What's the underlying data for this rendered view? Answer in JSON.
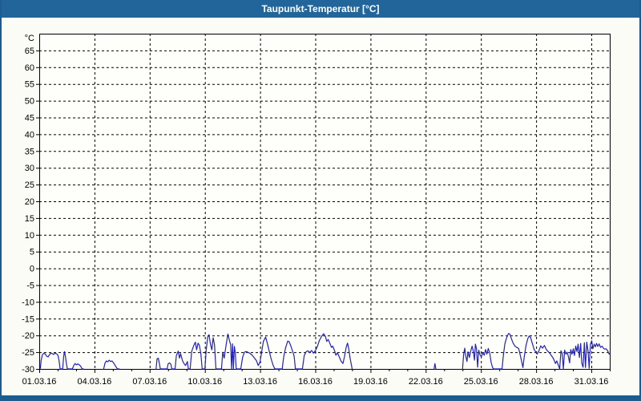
{
  "window": {
    "title": "Taupunkt-Temperatur [°C]",
    "colors": {
      "titlebar_bg": "#21659b",
      "frame": "#1c5c8e",
      "content_bg": "#fbfcf5",
      "plot_bg": "#fefefa",
      "grid": "#000000",
      "axis": "#000000",
      "label_text": "#000000",
      "title_text": "#ffffff",
      "line": "#2222bb"
    }
  },
  "chart_data": {
    "type": "line",
    "title": "Taupunkt-Temperatur [°C]",
    "y_unit": "°C",
    "legend": "none",
    "grid": "dashed",
    "x_axis": {
      "range_days": [
        0,
        31
      ],
      "start_date": "01.03.16",
      "end_date": "31.03.16",
      "tick_label_days": [
        0,
        3,
        6,
        9,
        12,
        15,
        18,
        21,
        24,
        27,
        30
      ],
      "tick_labels": [
        "01.03.16",
        "04.03.16",
        "07.03.16",
        "10.03.16",
        "13.03.16",
        "16.03.16",
        "19.03.16",
        "22.03.16",
        "25.03.16",
        "28.03.16",
        "31.03.16"
      ],
      "minor_tick_every_days": 1
    },
    "y_axis": {
      "range": [
        -30,
        70
      ],
      "ticks": [
        65,
        60,
        55,
        50,
        45,
        40,
        35,
        30,
        25,
        20,
        15,
        10,
        5,
        0,
        -5,
        -10,
        -15,
        -20,
        -25,
        -30
      ],
      "unit_label": "°C"
    },
    "series": [
      {
        "name": "Taupunkt-Temperatur",
        "color": "#2222bb",
        "unit": "°C",
        "segments": [
          [
            [
              0.06,
              -29.8
            ],
            [
              0.1,
              -27.5
            ],
            [
              0.17,
              -25.8
            ],
            [
              0.25,
              -25.3
            ],
            [
              0.33,
              -25.6
            ],
            [
              0.4,
              -26.2
            ],
            [
              0.48,
              -26.4
            ],
            [
              0.55,
              -25.8
            ],
            [
              0.63,
              -25.3
            ],
            [
              0.7,
              -25.4
            ],
            [
              0.78,
              -25.7
            ],
            [
              0.85,
              -25.3
            ],
            [
              0.95,
              -25.5
            ],
            [
              1.02,
              -26.0
            ],
            [
              1.08,
              -27.6
            ],
            [
              1.13,
              -30
            ],
            [
              1.27,
              -30
            ],
            [
              1.33,
              -26.2
            ],
            [
              1.37,
              -24.8
            ],
            [
              1.43,
              -26.5
            ],
            [
              1.48,
              -28.6
            ],
            [
              1.53,
              -30
            ],
            [
              1.8,
              -30
            ],
            [
              1.88,
              -28.9
            ],
            [
              1.95,
              -28.4
            ],
            [
              2.03,
              -28.8
            ],
            [
              2.1,
              -28.5
            ],
            [
              2.18,
              -28.8
            ],
            [
              2.25,
              -29.2
            ],
            [
              2.33,
              -30
            ],
            [
              2.4,
              -30
            ]
          ],
          [
            [
              3.5,
              -30
            ],
            [
              3.57,
              -28.3
            ],
            [
              3.65,
              -27.6
            ],
            [
              3.72,
              -27.9
            ],
            [
              3.8,
              -27.4
            ],
            [
              3.88,
              -27.8
            ],
            [
              3.95,
              -27.6
            ],
            [
              4.05,
              -28.3
            ],
            [
              4.15,
              -29.2
            ],
            [
              4.25,
              -30
            ],
            [
              4.35,
              -30
            ]
          ],
          [
            [
              6.35,
              -30
            ],
            [
              6.4,
              -27.0
            ],
            [
              6.47,
              -26.8
            ],
            [
              6.53,
              -28.5
            ],
            [
              6.58,
              -30
            ],
            [
              6.95,
              -30
            ],
            [
              7.0,
              -28.5
            ],
            [
              7.08,
              -28.2
            ],
            [
              7.15,
              -28.6
            ],
            [
              7.2,
              -30
            ],
            [
              7.38,
              -30
            ],
            [
              7.45,
              -26.0
            ],
            [
              7.55,
              -24.7
            ],
            [
              7.62,
              -26.8
            ],
            [
              7.68,
              -25.4
            ],
            [
              7.78,
              -27.5
            ],
            [
              7.85,
              -28.3
            ],
            [
              7.95,
              -29.0
            ],
            [
              8.05,
              -27.8
            ],
            [
              8.1,
              -30
            ],
            [
              8.2,
              -30
            ],
            [
              8.28,
              -24.8
            ],
            [
              8.38,
              -23.2
            ],
            [
              8.48,
              -22.0
            ],
            [
              8.55,
              -24.3
            ],
            [
              8.63,
              -22.3
            ],
            [
              8.7,
              -22.9
            ],
            [
              8.78,
              -25.5
            ],
            [
              8.85,
              -30
            ],
            [
              9.0,
              -30
            ],
            [
              9.07,
              -24.5
            ],
            [
              9.15,
              -20.5
            ],
            [
              9.22,
              -19.8
            ],
            [
              9.3,
              -22.5
            ],
            [
              9.38,
              -24.3
            ],
            [
              9.45,
              -20.7
            ],
            [
              9.52,
              -22.8
            ],
            [
              9.6,
              -30
            ],
            [
              9.9,
              -30
            ],
            [
              9.97,
              -25.0
            ],
            [
              10.05,
              -26.8
            ],
            [
              10.15,
              -23.0
            ],
            [
              10.25,
              -19.6
            ],
            [
              10.33,
              -21.5
            ],
            [
              10.4,
              -22.8
            ],
            [
              10.45,
              -30
            ],
            [
              10.5,
              -22.5
            ],
            [
              10.55,
              -30
            ],
            [
              10.6,
              -23.3
            ],
            [
              10.65,
              -25.0
            ],
            [
              10.7,
              -30
            ],
            [
              10.95,
              -30
            ],
            [
              11.05,
              -26.5
            ],
            [
              11.15,
              -25.0
            ],
            [
              11.25,
              -24.8
            ],
            [
              11.4,
              -25.2
            ],
            [
              11.55,
              -25.8
            ],
            [
              11.7,
              -26.8
            ],
            [
              11.8,
              -27.5
            ],
            [
              11.9,
              -29.0
            ],
            [
              12.0,
              -27.9
            ],
            [
              12.08,
              -25.0
            ],
            [
              12.18,
              -21.8
            ],
            [
              12.3,
              -20.5
            ],
            [
              12.4,
              -22.5
            ],
            [
              12.5,
              -24.8
            ],
            [
              12.6,
              -27.0
            ],
            [
              12.7,
              -28.8
            ],
            [
              12.8,
              -30
            ],
            [
              13.2,
              -30
            ],
            [
              13.28,
              -26.5
            ],
            [
              13.38,
              -23.8
            ],
            [
              13.5,
              -21.7
            ],
            [
              13.58,
              -21.9
            ],
            [
              13.68,
              -23.3
            ],
            [
              13.78,
              -25.0
            ],
            [
              13.85,
              -26.2
            ],
            [
              13.92,
              -30
            ],
            [
              14.3,
              -30
            ],
            [
              14.4,
              -26.0
            ],
            [
              14.5,
              -24.9
            ],
            [
              14.6,
              -24.6
            ],
            [
              14.7,
              -25.1
            ],
            [
              14.8,
              -24.5
            ],
            [
              14.9,
              -25.3
            ],
            [
              15.0,
              -24.6
            ],
            [
              15.1,
              -23.5
            ],
            [
              15.22,
              -21.5
            ],
            [
              15.35,
              -20.2
            ],
            [
              15.45,
              -19.5
            ],
            [
              15.55,
              -20.3
            ],
            [
              15.62,
              -21.8
            ],
            [
              15.7,
              -21.2
            ],
            [
              15.8,
              -22.5
            ],
            [
              15.88,
              -23.6
            ],
            [
              15.95,
              -23.2
            ],
            [
              16.05,
              -24.6
            ],
            [
              16.12,
              -25.9
            ],
            [
              16.2,
              -25.2
            ],
            [
              16.3,
              -26.4
            ],
            [
              16.4,
              -27.7
            ],
            [
              16.5,
              -28.4
            ],
            [
              16.58,
              -26.5
            ],
            [
              16.68,
              -23.5
            ],
            [
              16.75,
              -22.3
            ],
            [
              16.82,
              -24.0
            ],
            [
              16.88,
              -26.5
            ],
            [
              16.95,
              -28.5
            ],
            [
              17.0,
              -30
            ]
          ],
          [
            [
              21.45,
              -30
            ],
            [
              21.5,
              -28.4
            ],
            [
              21.55,
              -30
            ]
          ],
          [
            [
              23.0,
              -30
            ],
            [
              23.06,
              -25.8
            ],
            [
              23.12,
              -23.8
            ],
            [
              23.18,
              -26.3
            ],
            [
              23.24,
              -27.8
            ],
            [
              23.3,
              -24.9
            ],
            [
              23.37,
              -26.6
            ],
            [
              23.45,
              -24.6
            ],
            [
              23.52,
              -23.2
            ],
            [
              23.58,
              -24.6
            ],
            [
              23.65,
              -27.4
            ],
            [
              23.7,
              -22.6
            ],
            [
              23.76,
              -24.0
            ],
            [
              23.82,
              -29.5
            ],
            [
              23.88,
              -24.4
            ],
            [
              23.95,
              -25.8
            ],
            [
              24.02,
              -26.4
            ],
            [
              24.1,
              -25.2
            ],
            [
              24.18,
              -25.9
            ],
            [
              24.25,
              -24.2
            ],
            [
              24.32,
              -25.6
            ],
            [
              24.4,
              -23.9
            ],
            [
              24.48,
              -25.3
            ],
            [
              24.55,
              -28.0
            ],
            [
              24.62,
              -29.4
            ],
            [
              24.68,
              -30
            ],
            [
              25.15,
              -30
            ],
            [
              25.22,
              -26.0
            ],
            [
              25.3,
              -22.5
            ],
            [
              25.4,
              -20.6
            ],
            [
              25.5,
              -19.4
            ],
            [
              25.58,
              -19.7
            ],
            [
              25.65,
              -20.9
            ],
            [
              25.75,
              -22.3
            ],
            [
              25.85,
              -23.2
            ],
            [
              25.95,
              -23.6
            ],
            [
              26.05,
              -23.9
            ],
            [
              26.12,
              -25.5
            ],
            [
              26.2,
              -27.5
            ],
            [
              26.28,
              -29.6
            ],
            [
              26.35,
              -26.5
            ],
            [
              26.45,
              -23.0
            ],
            [
              26.55,
              -20.9
            ],
            [
              26.62,
              -20.2
            ],
            [
              26.7,
              -20.6
            ],
            [
              26.8,
              -22.5
            ],
            [
              26.9,
              -24.3
            ],
            [
              26.98,
              -24.9
            ],
            [
              27.05,
              -25.6
            ],
            [
              27.15,
              -24.6
            ],
            [
              27.25,
              -23.1
            ],
            [
              27.35,
              -23.8
            ],
            [
              27.45,
              -23.0
            ],
            [
              27.55,
              -24.2
            ],
            [
              27.65,
              -24.8
            ],
            [
              27.75,
              -25.4
            ],
            [
              27.85,
              -26.2
            ],
            [
              27.95,
              -27.0
            ],
            [
              28.05,
              -28.4
            ],
            [
              28.12,
              -27.6
            ],
            [
              28.2,
              -28.8
            ],
            [
              28.28,
              -30
            ],
            [
              28.35,
              -24.6
            ],
            [
              28.42,
              -25.4
            ],
            [
              28.48,
              -30
            ],
            [
              28.55,
              -24.4
            ],
            [
              28.62,
              -25.6
            ],
            [
              28.68,
              -25.0
            ],
            [
              28.75,
              -26.2
            ],
            [
              28.82,
              -28.2
            ],
            [
              28.88,
              -24.2
            ],
            [
              28.95,
              -25.6
            ],
            [
              29.02,
              -24.0
            ],
            [
              29.08,
              -26.0
            ],
            [
              29.15,
              -23.2
            ],
            [
              29.22,
              -24.8
            ],
            [
              29.28,
              -22.6
            ],
            [
              29.35,
              -26.6
            ],
            [
              29.42,
              -22.4
            ],
            [
              29.48,
              -28.3
            ],
            [
              29.55,
              -29.5
            ],
            [
              29.62,
              -22.2
            ],
            [
              29.68,
              -29.6
            ],
            [
              29.75,
              -22.0
            ],
            [
              29.82,
              -24.6
            ],
            [
              29.88,
              -29.8
            ],
            [
              29.95,
              -22.6
            ],
            [
              30.02,
              -21.6
            ],
            [
              30.08,
              -24.0
            ],
            [
              30.15,
              -22.6
            ],
            [
              30.22,
              -23.4
            ],
            [
              30.28,
              -22.4
            ],
            [
              30.35,
              -23.3
            ],
            [
              30.42,
              -22.5
            ],
            [
              30.5,
              -23.6
            ],
            [
              30.58,
              -23.2
            ],
            [
              30.65,
              -23.8
            ],
            [
              30.72,
              -24.1
            ],
            [
              30.8,
              -24.0
            ],
            [
              30.85,
              -24.3
            ],
            [
              30.92,
              -25.0
            ],
            [
              30.97,
              -25.6
            ],
            [
              31.0,
              -25.4
            ]
          ]
        ]
      }
    ]
  }
}
